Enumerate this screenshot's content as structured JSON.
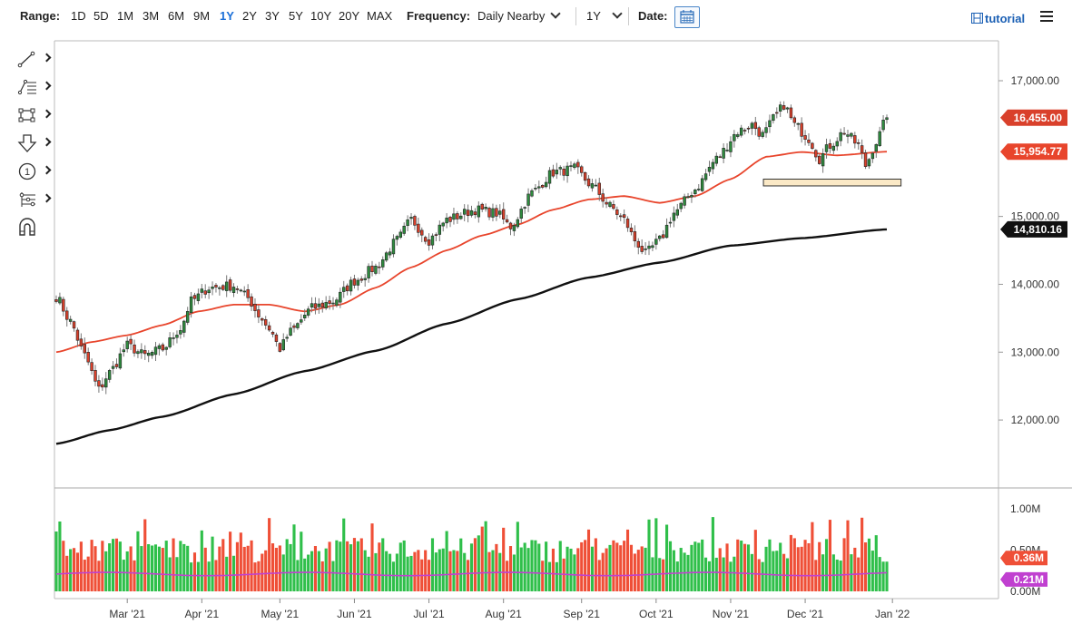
{
  "toolbar": {
    "range_label": "Range:",
    "ranges": [
      "1D",
      "5D",
      "1M",
      "3M",
      "6M",
      "9M",
      "1Y",
      "2Y",
      "3Y",
      "5Y",
      "10Y",
      "20Y",
      "MAX"
    ],
    "active_range": "1Y",
    "frequency_label": "Frequency:",
    "frequency_value": "Daily Nearby",
    "period_value": "1Y",
    "date_label": "Date:",
    "tutorial_label": "tutorial",
    "calendar_icon": "calendar-icon",
    "menu_icon": "hamburger-menu-icon"
  },
  "drawing_tools": [
    {
      "icon": "line-tool-icon"
    },
    {
      "icon": "fibonacci-tool-icon"
    },
    {
      "icon": "rectangle-tool-icon"
    },
    {
      "icon": "arrow-down-tool-icon"
    },
    {
      "icon": "number-marker-tool-icon"
    },
    {
      "icon": "measure-tool-icon"
    },
    {
      "icon": "magnet-icon"
    }
  ],
  "colors": {
    "up": "#2e8b3e",
    "down": "#d9402b",
    "ma50": "#e8452c",
    "ma200": "#111111",
    "vol_up": "#2fbf4a",
    "vol_down": "#ef4f37",
    "vol_avg": "#c040d0",
    "highlight_fill": "#fbe9c6",
    "highlight_stroke": "#333333"
  },
  "chart_data": {
    "type": "candlestick",
    "grid": false,
    "price_axis": {
      "ticks": [
        "17,000.00",
        "15,000.00",
        "14,000.00",
        "13,000.00",
        "12,000.00"
      ],
      "tick_values": [
        17000,
        15000,
        14000,
        13000,
        12000
      ],
      "range": [
        11000,
        17500
      ]
    },
    "x_axis": {
      "labels": [
        "Mar '21",
        "Apr '21",
        "May '21",
        "Jun '21",
        "Jul '21",
        "Aug '21",
        "Sep '21",
        "Oct '21",
        "Nov '21",
        "Dec '21",
        "Jan '22"
      ]
    },
    "price_tags": [
      {
        "value": 16455.0,
        "label": "16,455.00",
        "series": "last"
      },
      {
        "value": 15954.77,
        "label": "15,954.77",
        "series": "ma50"
      },
      {
        "value": 14810.16,
        "label": "14,810.16",
        "series": "ma200"
      }
    ],
    "anchors": [
      [
        0,
        13820
      ],
      [
        4,
        13450
      ],
      [
        8,
        12950
      ],
      [
        12,
        12450
      ],
      [
        15,
        12700
      ],
      [
        20,
        13100
      ],
      [
        25,
        12950
      ],
      [
        30,
        13050
      ],
      [
        35,
        13350
      ],
      [
        38,
        13750
      ],
      [
        43,
        13950
      ],
      [
        50,
        13980
      ],
      [
        54,
        13800
      ],
      [
        57,
        13550
      ],
      [
        60,
        13350
      ],
      [
        63,
        13050
      ],
      [
        66,
        13300
      ],
      [
        72,
        13650
      ],
      [
        78,
        13750
      ],
      [
        84,
        14050
      ],
      [
        90,
        14250
      ],
      [
        96,
        14650
      ],
      [
        100,
        14950
      ],
      [
        105,
        14650
      ],
      [
        110,
        14950
      ],
      [
        118,
        15100
      ],
      [
        124,
        15050
      ],
      [
        128,
        14850
      ],
      [
        134,
        15350
      ],
      [
        140,
        15650
      ],
      [
        146,
        15700
      ],
      [
        151,
        15450
      ],
      [
        156,
        15150
      ],
      [
        160,
        14950
      ],
      [
        163,
        14650
      ],
      [
        166,
        14450
      ],
      [
        170,
        14650
      ],
      [
        174,
        15050
      ],
      [
        180,
        15400
      ],
      [
        186,
        15850
      ],
      [
        192,
        16250
      ],
      [
        196,
        16350
      ],
      [
        199,
        16200
      ],
      [
        203,
        16500
      ],
      [
        205,
        16650
      ],
      [
        208,
        16350
      ],
      [
        212,
        16150
      ],
      [
        215,
        15850
      ],
      [
        218,
        16050
      ],
      [
        222,
        16250
      ],
      [
        226,
        16050
      ],
      [
        228,
        15750
      ],
      [
        231,
        16100
      ],
      [
        234,
        16455
      ]
    ],
    "ma50_anchors": [
      [
        0,
        13000
      ],
      [
        10,
        13150
      ],
      [
        20,
        13250
      ],
      [
        30,
        13400
      ],
      [
        40,
        13600
      ],
      [
        50,
        13700
      ],
      [
        60,
        13700
      ],
      [
        70,
        13600
      ],
      [
        80,
        13700
      ],
      [
        90,
        13950
      ],
      [
        100,
        14250
      ],
      [
        110,
        14500
      ],
      [
        120,
        14720
      ],
      [
        130,
        14880
      ],
      [
        140,
        15100
      ],
      [
        150,
        15250
      ],
      [
        160,
        15300
      ],
      [
        170,
        15200
      ],
      [
        180,
        15300
      ],
      [
        190,
        15550
      ],
      [
        200,
        15880
      ],
      [
        210,
        15950
      ],
      [
        220,
        15900
      ],
      [
        234,
        15955
      ]
    ],
    "ma200_anchors": [
      [
        0,
        11650
      ],
      [
        15,
        11850
      ],
      [
        30,
        12050
      ],
      [
        50,
        12380
      ],
      [
        70,
        12720
      ],
      [
        90,
        13020
      ],
      [
        110,
        13420
      ],
      [
        130,
        13780
      ],
      [
        150,
        14100
      ],
      [
        170,
        14320
      ],
      [
        190,
        14570
      ],
      [
        210,
        14680
      ],
      [
        234,
        14810
      ]
    ],
    "highlight_zone": {
      "start_index": 200,
      "end_index": 238,
      "low": 15450,
      "high": 15550
    },
    "volume": {
      "axis_ticks": [
        "1.00M",
        "0.50M",
        "0.00M"
      ],
      "tick_values": [
        1.0,
        0.5,
        0.0
      ],
      "range": [
        0,
        1.1
      ],
      "last_volume": 0.36,
      "last_volume_label": "0.36M",
      "avg_volume": 0.21,
      "avg_volume_label": "0.21M"
    },
    "num_bars": 235
  }
}
